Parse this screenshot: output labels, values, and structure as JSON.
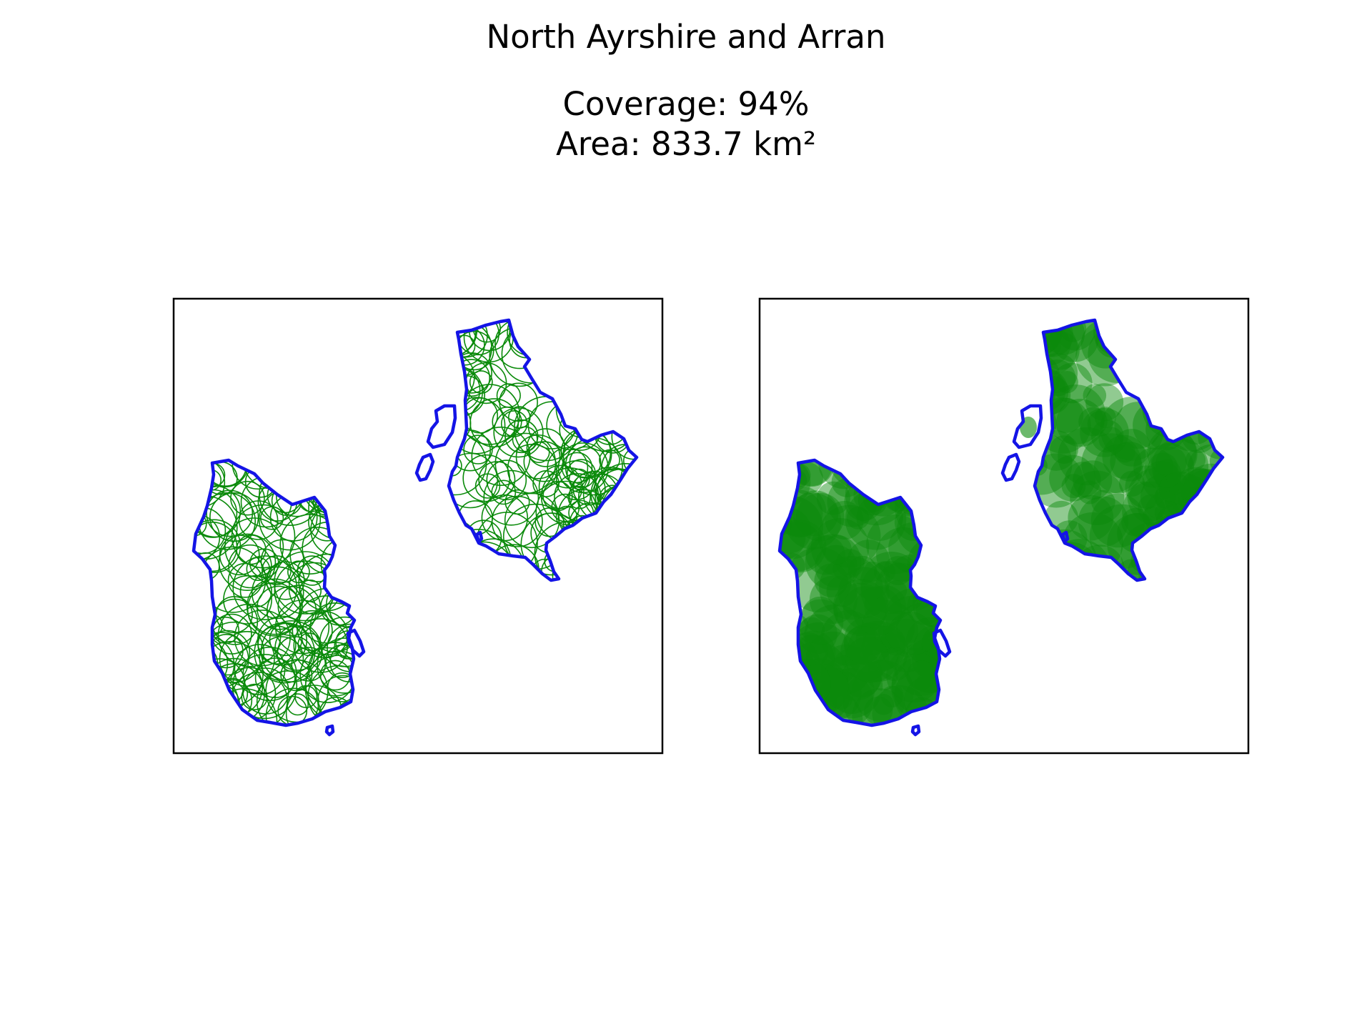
{
  "figure": {
    "title": "North Ayrshire and Arran",
    "coverage_text": "Coverage: 94%",
    "area_text": "Area: 833.7 km²"
  },
  "chart_data": {
    "type": "map",
    "title": "North Ayrshire and Arran",
    "coverage_percent": 94,
    "area_km2": 833.7,
    "panels": [
      {
        "name": "circle-outlines",
        "style": "outline"
      },
      {
        "name": "circle-filled",
        "style": "filled"
      }
    ]
  },
  "colors": {
    "boundary": "#1414e6",
    "circles": "#0a8a0a",
    "frame": "#000000",
    "background": "#ffffff"
  }
}
